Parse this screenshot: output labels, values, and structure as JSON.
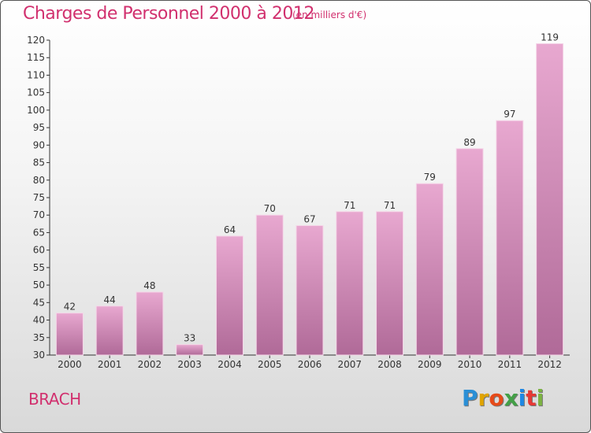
{
  "header": {
    "title": "Charges de Personnel 2000 à 2012",
    "subtitle": "(en milliers d'€)"
  },
  "footer": {
    "commune": "BRACH",
    "logo_text": "Proxiti"
  },
  "colors": {
    "title": "#d1306e",
    "bar_top": "#e8a8d0",
    "bar_bottom": "#b06a98"
  },
  "chart_data": {
    "type": "bar",
    "title": "Charges de Personnel 2000 à 2012",
    "subtitle": "(en milliers d'€)",
    "categories": [
      "2000",
      "2001",
      "2002",
      "2003",
      "2004",
      "2005",
      "2006",
      "2007",
      "2008",
      "2009",
      "2010",
      "2011",
      "2012"
    ],
    "values": [
      42,
      44,
      48,
      33,
      64,
      70,
      67,
      71,
      71,
      79,
      89,
      97,
      119
    ],
    "ylim": [
      30,
      120
    ],
    "yticks": [
      30,
      35,
      40,
      45,
      50,
      55,
      60,
      65,
      70,
      75,
      80,
      85,
      90,
      95,
      100,
      105,
      110,
      115,
      120
    ],
    "grid": false,
    "xlabel": "",
    "ylabel": ""
  }
}
